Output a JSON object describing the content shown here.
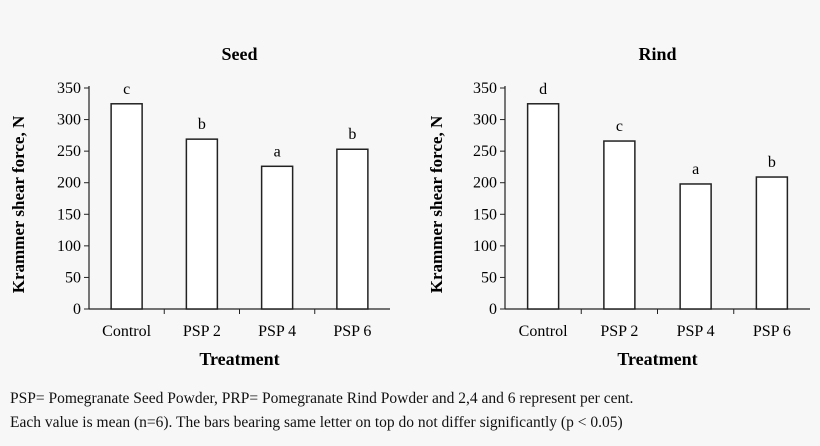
{
  "chart_data": [
    {
      "type": "bar",
      "title": "Seed",
      "xlabel": "Treatment",
      "ylabel": "Krammer shear force, N",
      "categories": [
        "Control",
        "PSP 2",
        "PSP 4",
        "PSP 6"
      ],
      "values": [
        325,
        269,
        226,
        253
      ],
      "letters": [
        "c",
        "b",
        "a",
        "b"
      ],
      "ylim": [
        0,
        350
      ],
      "yticks": [
        0,
        50,
        100,
        150,
        200,
        250,
        300,
        350
      ],
      "grid": false,
      "bar_color": "#ffffff"
    },
    {
      "type": "bar",
      "title": "Rind",
      "xlabel": "Treatment",
      "ylabel": "Krammer shear force, N",
      "categories": [
        "Control",
        "PSP 2",
        "PSP 4",
        "PSP 6"
      ],
      "values": [
        325,
        266,
        198,
        209
      ],
      "letters": [
        "d",
        "c",
        "a",
        "b"
      ],
      "ylim": [
        0,
        350
      ],
      "yticks": [
        0,
        50,
        100,
        150,
        200,
        250,
        300,
        350
      ],
      "grid": false,
      "bar_color": "#ffffff"
    }
  ],
  "caption": {
    "line1": "PSP= Pomegranate Seed Powder,  PRP= Pomegranate Rind Powder and  2,4 and 6 represent per cent.",
    "line2": "Each value is mean (n=6). The bars bearing same letter on top do not differ significantly (p < 0.05)"
  }
}
